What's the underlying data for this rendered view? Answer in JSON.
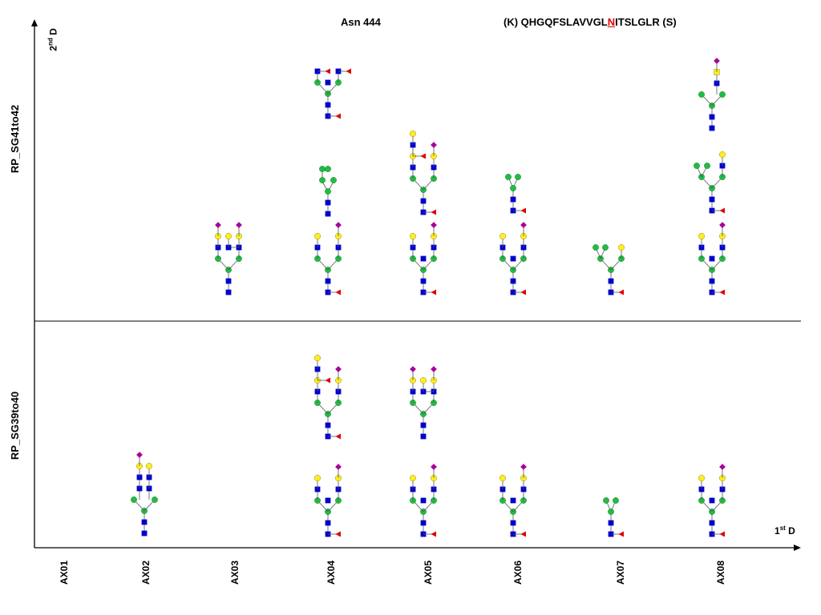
{
  "header": {
    "site": "Asn 444",
    "sequence_prefix": "(K) QHGQFSLAVVGL",
    "sequence_site": "N",
    "sequence_suffix": "ITSLGLR (S)"
  },
  "axes": {
    "y_label": "2",
    "y_label_sup": "nd",
    "y_label_tail": " D",
    "x_label": "1",
    "x_label_sup": "st",
    "x_label_tail": " D"
  },
  "rows": [
    {
      "label": "RP_SG41to42"
    },
    {
      "label": "RP_SG39to40"
    }
  ],
  "fractions": [
    "AX01",
    "AX02",
    "AX03",
    "AX04",
    "AX05",
    "AX06",
    "AX07",
    "AX08"
  ],
  "colors": {
    "hexnac": "#0000cc",
    "mannose": "#22bb44",
    "galactose": "#ffee22",
    "sialic_acid": "#aa0099",
    "fucose": "#dd0000",
    "axis": "#000000",
    "site_highlight": "#e00000"
  },
  "legend_symbols": {
    "blue-square": "GlcNAc",
    "green-circle": "Mannose",
    "yellow-circle": "Galactose",
    "purple-diamond": "Sialic acid",
    "red-triangle": "Fucose"
  },
  "glycans": [
    {
      "fraction": "AX03",
      "row": "RP_SG41to42",
      "type": "triantennary",
      "sia": 2,
      "fuc": false
    },
    {
      "fraction": "AX04",
      "row": "RP_SG41to42",
      "type": "high-mannose"
    },
    {
      "fraction": "AX04",
      "row": "RP_SG41to42",
      "type": "biantennary",
      "sia": 1,
      "fuc": true
    },
    {
      "fraction": "AX04",
      "row": "RP_SG41to42",
      "type": "biantennary-lewis",
      "fuc": true
    },
    {
      "fraction": "AX05",
      "row": "RP_SG41to42",
      "type": "biantennary-extended",
      "sia": 1,
      "fuc": true
    },
    {
      "fraction": "AX05",
      "row": "RP_SG41to42",
      "type": "biantennary-bisect",
      "sia": 1,
      "fuc": true
    },
    {
      "fraction": "AX06",
      "row": "RP_SG41to42",
      "type": "paucimannose",
      "fuc": true
    },
    {
      "fraction": "AX06",
      "row": "RP_SG41to42",
      "type": "biantennary-bisect",
      "sia": 1,
      "fuc": true
    },
    {
      "fraction": "AX07",
      "row": "RP_SG41to42",
      "type": "hybrid",
      "fuc": true
    },
    {
      "fraction": "AX08",
      "row": "RP_SG41to42",
      "type": "antenna-extended",
      "sia": 1
    },
    {
      "fraction": "AX08",
      "row": "RP_SG41to42",
      "type": "hybrid-gal",
      "fuc": true
    },
    {
      "fraction": "AX08",
      "row": "RP_SG41to42",
      "type": "biantennary-bisect",
      "sia": 1,
      "fuc": true
    },
    {
      "fraction": "AX02",
      "row": "RP_SG39to40",
      "type": "biantennary-partial",
      "sia": 1
    },
    {
      "fraction": "AX04",
      "row": "RP_SG39to40",
      "type": "biantennary-extended",
      "sia": 1,
      "fuc": true
    },
    {
      "fraction": "AX04",
      "row": "RP_SG39to40",
      "type": "biantennary-bisect",
      "sia": 1,
      "fuc": true
    },
    {
      "fraction": "AX05",
      "row": "RP_SG39to40",
      "type": "triantennary",
      "sia": 2
    },
    {
      "fraction": "AX05",
      "row": "RP_SG39to40",
      "type": "biantennary-bisect",
      "sia": 1,
      "fuc": true
    },
    {
      "fraction": "AX06",
      "row": "RP_SG39to40",
      "type": "biantennary-bisect",
      "sia": 1,
      "fuc": true
    },
    {
      "fraction": "AX07",
      "row": "RP_SG39to40",
      "type": "paucimannose",
      "fuc": true
    },
    {
      "fraction": "AX08",
      "row": "RP_SG39to40",
      "type": "biantennary-bisect",
      "sia": 1,
      "fuc": true
    }
  ]
}
